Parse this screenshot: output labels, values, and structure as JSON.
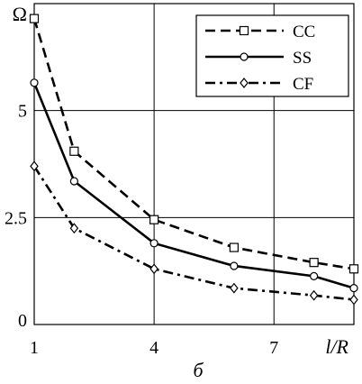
{
  "chart_data": {
    "type": "line",
    "ylabel": "Ω",
    "xlabel": "l/R",
    "caption": "б",
    "xlim": [
      1,
      9
    ],
    "ylim": [
      0,
      7.5
    ],
    "x_ticks": [
      {
        "value": 1,
        "label": "1"
      },
      {
        "value": 4,
        "label": "4"
      },
      {
        "value": 7,
        "label": "7"
      },
      {
        "value": 9,
        "label": "l/R"
      }
    ],
    "y_ticks": [
      {
        "value": 0,
        "label": "0"
      },
      {
        "value": 2.5,
        "label": "2.5"
      },
      {
        "value": 5,
        "label": "5"
      },
      {
        "value": 7.5,
        "label": "Ω"
      }
    ],
    "grid": true,
    "legend_position": "top-right",
    "series": [
      {
        "name": "CC",
        "style": "dashed",
        "marker": "square",
        "x": [
          1,
          2,
          4,
          6,
          8,
          9
        ],
        "y": [
          7.15,
          4.05,
          2.45,
          1.8,
          1.45,
          1.3
        ]
      },
      {
        "name": "SS",
        "style": "solid",
        "marker": "circle",
        "x": [
          1,
          2,
          4,
          6,
          8,
          9
        ],
        "y": [
          5.65,
          3.35,
          1.9,
          1.37,
          1.13,
          0.85
        ]
      },
      {
        "name": "CF",
        "style": "dash-dot",
        "marker": "diamond",
        "x": [
          1,
          2,
          4,
          6,
          8,
          9
        ],
        "y": [
          3.7,
          2.25,
          1.3,
          0.85,
          0.68,
          0.58
        ]
      }
    ]
  }
}
